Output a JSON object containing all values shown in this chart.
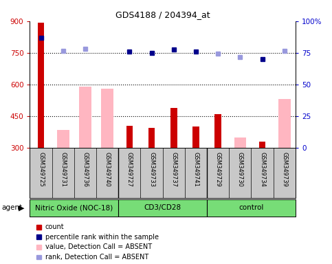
{
  "title": "GDS4188 / 204394_at",
  "samples": [
    "GSM349725",
    "GSM349731",
    "GSM349736",
    "GSM349740",
    "GSM349727",
    "GSM349733",
    "GSM349737",
    "GSM349741",
    "GSM349729",
    "GSM349730",
    "GSM349734",
    "GSM349739"
  ],
  "groups": [
    {
      "label": "Nitric Oxide (NOC-18)",
      "start": 0,
      "end": 4
    },
    {
      "label": "CD3/CD28",
      "start": 4,
      "end": 8
    },
    {
      "label": "control",
      "start": 8,
      "end": 12
    }
  ],
  "count_values": [
    893,
    null,
    null,
    null,
    405,
    395,
    490,
    400,
    460,
    null,
    330,
    null
  ],
  "absent_value_bars": [
    null,
    385,
    590,
    580,
    null,
    null,
    null,
    null,
    null,
    350,
    null,
    530
  ],
  "percentile_rank_present": [
    820,
    null,
    null,
    null,
    755,
    750,
    765,
    755,
    null,
    null,
    720,
    null
  ],
  "percentile_rank_absent": [
    null,
    760,
    770,
    null,
    null,
    null,
    null,
    null,
    745,
    730,
    null,
    760
  ],
  "ylim_left": [
    300,
    900
  ],
  "ylim_right": [
    0,
    100
  ],
  "yticks_left": [
    300,
    450,
    600,
    750,
    900
  ],
  "yticks_right": [
    0,
    25,
    50,
    75,
    100
  ],
  "dotted_lines": [
    450,
    600,
    750
  ],
  "count_color": "#CC0000",
  "absent_bar_color": "#FFB6C1",
  "rank_present_color": "#00008B",
  "rank_absent_color": "#9999DD",
  "left_tick_color": "#CC0000",
  "right_tick_color": "#0000CC",
  "xlabel_area_color": "#C8C8C8",
  "group_label_color": "#77DD77",
  "agent_label": "agent",
  "legend_items": [
    {
      "label": "count",
      "color": "#CC0000"
    },
    {
      "label": "percentile rank within the sample",
      "color": "#00008B"
    },
    {
      "label": "value, Detection Call = ABSENT",
      "color": "#FFB6C1"
    },
    {
      "label": "rank, Detection Call = ABSENT",
      "color": "#9999DD"
    }
  ]
}
